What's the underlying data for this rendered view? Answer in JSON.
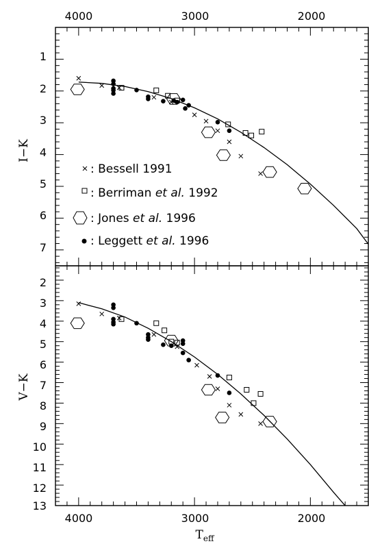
{
  "chart_data": [
    {
      "type": "scatter",
      "xlabel_top_ticks": [
        "4000",
        "3000",
        "2000"
      ],
      "xlim": [
        4200,
        1500
      ],
      "ylabel": "I−K",
      "ylim": [
        0,
        7.5
      ],
      "yticks": [
        "1",
        "2",
        "3",
        "4",
        "5",
        "6",
        "7"
      ],
      "legend": [
        {
          "symbol": "cross",
          "label_prefix": ": Bessell 1991",
          "label_italic": "",
          "label_suffix": ""
        },
        {
          "symbol": "square",
          "label_prefix": ": Berriman ",
          "label_italic": "et al.",
          "label_suffix": " 1992"
        },
        {
          "symbol": "hexagon",
          "label_prefix": ": Jones ",
          "label_italic": "et al.",
          "label_suffix": " 1996"
        },
        {
          "symbol": "dot",
          "label_prefix": ": Leggett ",
          "label_italic": "et al.",
          "label_suffix": " 1996"
        }
      ],
      "series": [
        {
          "name": "Bessell 1991",
          "symbol": "cross",
          "x": [
            4000,
            3800,
            3650,
            3350,
            3200,
            3000,
            2900,
            2800,
            2700,
            2600,
            2430
          ],
          "y": [
            1.6,
            1.83,
            1.9,
            2.2,
            2.35,
            2.75,
            2.95,
            3.25,
            3.6,
            4.05,
            4.6
          ]
        },
        {
          "name": "Berriman et al. 1992",
          "symbol": "square",
          "x": [
            3630,
            3330,
            3230,
            3150,
            2710,
            2560,
            2510,
            2420
          ],
          "y": [
            1.9,
            1.98,
            2.15,
            2.3,
            3.05,
            3.32,
            3.4,
            3.28
          ]
        },
        {
          "name": "Jones et al. 1996",
          "symbol": "hexagon",
          "x": [
            4010,
            3180,
            2880,
            2750,
            2350,
            2050
          ],
          "y": [
            1.95,
            2.25,
            3.3,
            4.02,
            4.55,
            5.07
          ]
        },
        {
          "name": "Leggett et al. 1996",
          "symbol": "dot",
          "x": [
            3700,
            3700,
            3700,
            3700,
            3700,
            3500,
            3400,
            3400,
            3270,
            3180,
            3150,
            3100,
            3080,
            3050,
            2800,
            2700
          ],
          "y": [
            1.68,
            1.78,
            1.92,
            1.98,
            2.08,
            1.97,
            2.18,
            2.25,
            2.32,
            2.3,
            2.35,
            2.28,
            2.55,
            2.45,
            2.98,
            3.25
          ]
        }
      ],
      "fit": {
        "x": [
          4000,
          3800,
          3600,
          3400,
          3200,
          3000,
          2800,
          2600,
          2400,
          2200,
          2000,
          1800,
          1600,
          1500
        ],
        "y": [
          1.72,
          1.76,
          1.86,
          2.02,
          2.24,
          2.53,
          2.88,
          3.3,
          3.78,
          4.32,
          4.93,
          5.6,
          6.33,
          6.82
        ]
      }
    },
    {
      "type": "scatter",
      "xlabel": "T",
      "xlabel_sub": "eff",
      "xlabel_ticks": [
        "4000",
        "3000",
        "2000"
      ],
      "xlim": [
        4200,
        1500
      ],
      "ylabel": "V−K",
      "ylim": [
        1.3,
        13
      ],
      "yticks": [
        "2",
        "3",
        "4",
        "5",
        "6",
        "7",
        "8",
        "9",
        "10",
        "11",
        "12",
        "13"
      ],
      "series": [
        {
          "name": "Bessell 1991",
          "symbol": "cross",
          "x": [
            4000,
            3800,
            3650,
            3350,
            3150,
            2980,
            2870,
            2800,
            2700,
            2600,
            2430
          ],
          "y": [
            3.15,
            3.65,
            3.85,
            4.65,
            5.25,
            6.15,
            6.7,
            7.3,
            8.1,
            8.55,
            9.0
          ]
        },
        {
          "name": "Berriman et al. 1992",
          "symbol": "square",
          "x": [
            3630,
            3330,
            3260,
            3200,
            3150,
            2700,
            2550,
            2490,
            2430
          ],
          "y": [
            3.9,
            4.1,
            4.45,
            5.0,
            5.05,
            6.75,
            7.35,
            8.0,
            7.55
          ]
        },
        {
          "name": "Jones et al. 1996",
          "symbol": "hexagon",
          "x": [
            4010,
            3200,
            2880,
            2760,
            2350
          ],
          "y": [
            4.1,
            4.95,
            7.35,
            8.7,
            8.9
          ]
        },
        {
          "name": "Leggett et al. 1996",
          "symbol": "dot",
          "x": [
            3700,
            3700,
            3700,
            3700,
            3700,
            3500,
            3400,
            3400,
            3400,
            3270,
            3200,
            3100,
            3100,
            3100,
            3050,
            2800,
            2700
          ],
          "y": [
            3.2,
            3.35,
            3.9,
            4.05,
            4.15,
            4.1,
            4.65,
            4.8,
            4.9,
            5.15,
            5.2,
            4.95,
            5.1,
            5.55,
            5.9,
            6.65,
            7.5
          ]
        }
      ],
      "fit": {
        "x": [
          4000,
          3800,
          3600,
          3400,
          3200,
          3000,
          2800,
          2600,
          2400,
          2200,
          2000,
          1800,
          1700
        ],
        "y": [
          3.1,
          3.4,
          3.8,
          4.35,
          5.0,
          5.75,
          6.6,
          7.55,
          8.6,
          9.75,
          11.0,
          12.35,
          13.0
        ]
      }
    }
  ]
}
